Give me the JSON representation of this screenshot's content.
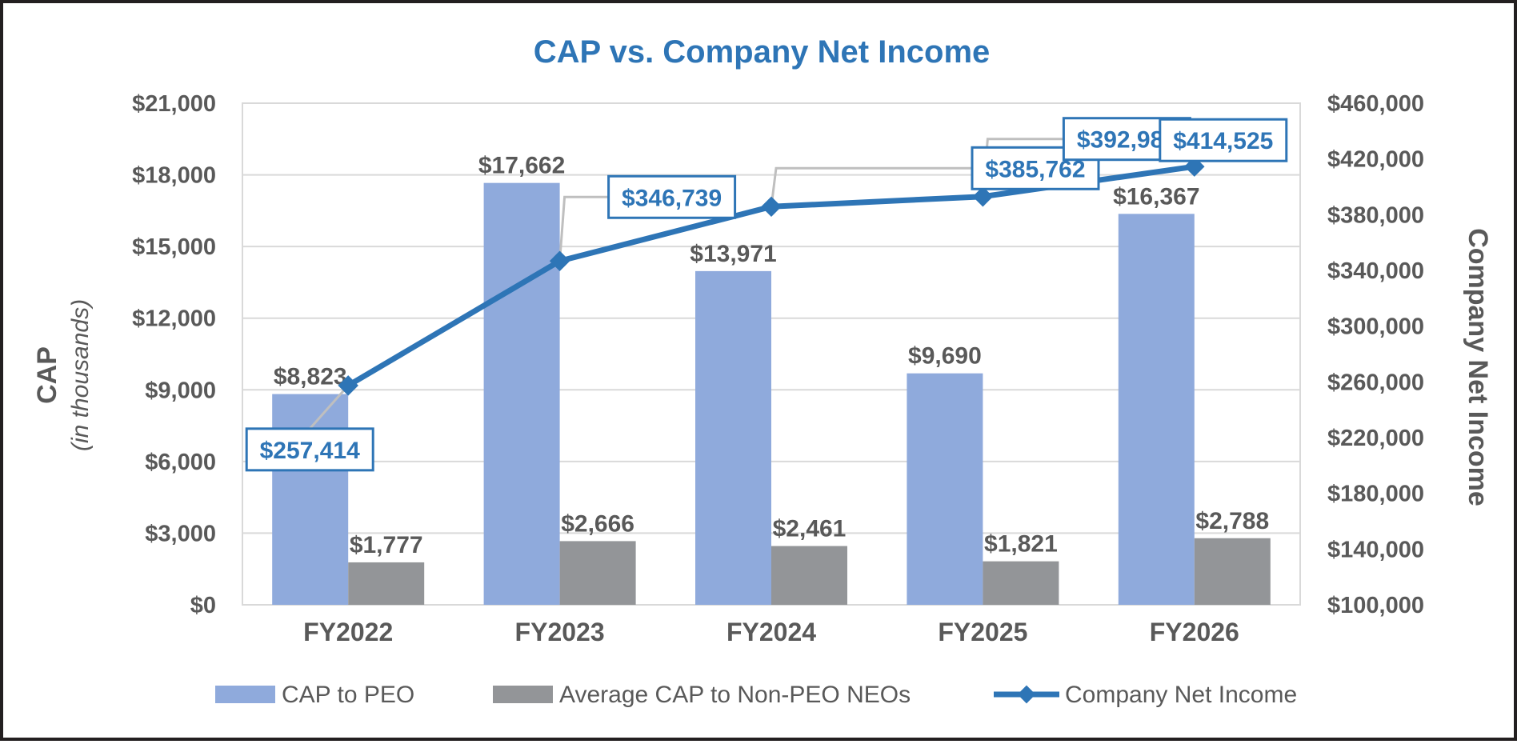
{
  "chart_data": {
    "type": "bar",
    "title": "CAP vs. Company Net Income",
    "categories": [
      "FY2022",
      "FY2023",
      "FY2024",
      "FY2025",
      "FY2026"
    ],
    "y_left": {
      "title": "CAP",
      "subtitle": "(in thousands)",
      "ylim": [
        0,
        21000
      ],
      "ticks": [
        "$0",
        "$3,000",
        "$6,000",
        "$9,000",
        "$12,000",
        "$15,000",
        "$18,000",
        "$21,000"
      ]
    },
    "y_right": {
      "title": "Company Net Income",
      "ylim": [
        100000,
        460000
      ],
      "ticks": [
        "$100,000",
        "$140,000",
        "$180,000",
        "$220,000",
        "$260,000",
        "$300,000",
        "$340,000",
        "$380,000",
        "$420,000",
        "$460,000"
      ]
    },
    "series": [
      {
        "name": "CAP to PEO",
        "type": "bar",
        "axis": "left",
        "color": "#8faadc",
        "values": [
          8823,
          17662,
          13971,
          9690,
          16367
        ],
        "labels": [
          "$8,823",
          "$17,662",
          "$13,971",
          "$9,690",
          "$16,367"
        ]
      },
      {
        "name": "Average CAP to Non-PEO NEOs",
        "type": "bar",
        "axis": "left",
        "color": "#939598",
        "values": [
          1777,
          2666,
          2461,
          1821,
          2788
        ],
        "labels": [
          "$1,777",
          "$2,666",
          "$2,461",
          "$1,821",
          "$2,788"
        ]
      },
      {
        "name": "Company Net Income",
        "type": "line",
        "axis": "right",
        "color": "#2e75b6",
        "values": [
          257414,
          346739,
          385762,
          392988,
          414525
        ],
        "labels": [
          "$257,414",
          "$346,739",
          "$385,762",
          "$392,988",
          "$414,525"
        ]
      }
    ],
    "grid": true,
    "legend_position": "bottom"
  }
}
